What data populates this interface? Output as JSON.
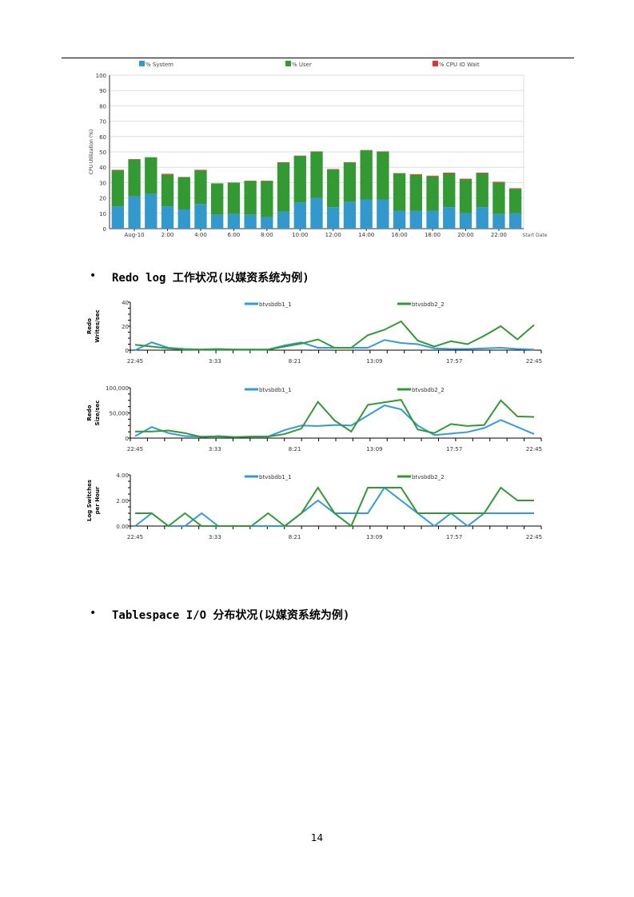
{
  "cpu_chart": {
    "chart_data": {
      "type": "bar",
      "stacked": true,
      "ylabel": "CPU Utilization (%)",
      "xlabel": "Start Date",
      "ylim": [
        0,
        100
      ],
      "yticks": [
        0,
        10,
        20,
        30,
        40,
        50,
        60,
        70,
        80,
        90,
        100
      ],
      "grid": true,
      "legend_position": "top",
      "tick_labels": [
        {
          "index": 1,
          "label": "Aug-10"
        },
        {
          "index": 3,
          "label": "2:00"
        },
        {
          "index": 5,
          "label": "4:00"
        },
        {
          "index": 7,
          "label": "6:00"
        },
        {
          "index": 9,
          "label": "8:00"
        },
        {
          "index": 11,
          "label": "10:00"
        },
        {
          "index": 13,
          "label": "12:00"
        },
        {
          "index": 15,
          "label": "14:00"
        },
        {
          "index": 17,
          "label": "16:00"
        },
        {
          "index": 19,
          "label": "18:00"
        },
        {
          "index": 21,
          "label": "20:00"
        },
        {
          "index": 23,
          "label": "22:00"
        }
      ],
      "series": [
        {
          "name": "% System",
          "color": "#3399cc",
          "values": [
            14.5,
            21,
            22.5,
            14.5,
            12.5,
            16,
            9,
            9.5,
            9,
            7.5,
            11,
            17,
            20,
            14,
            17.5,
            19,
            19,
            11.5,
            11.5,
            11.5,
            14,
            10,
            14,
            9.5,
            10
          ]
        },
        {
          "name": "% User",
          "color": "#339933",
          "values": [
            23.5,
            24,
            24,
            20.5,
            21,
            22,
            20.5,
            20.5,
            22,
            23.5,
            32,
            30.5,
            30,
            24.5,
            25.5,
            32,
            31,
            24.5,
            23.5,
            22.5,
            22,
            22,
            22,
            20.5,
            16
          ]
        },
        {
          "name": "% CPU IO Wait",
          "color": "#dd3333",
          "values": [
            0.3,
            0.3,
            0,
            0.7,
            0.2,
            0.3,
            0,
            0,
            0.2,
            0.2,
            0.3,
            0.1,
            0.3,
            0.3,
            0.3,
            0.2,
            0.3,
            0.2,
            0.5,
            0.5,
            0.5,
            0.5,
            0.5,
            0.5,
            0.3
          ]
        }
      ]
    }
  },
  "section1": {
    "bullet": "•",
    "heading": "Redo log 工作状况(以媒资系统为例)"
  },
  "redo_charts": {
    "chart_data": [
      {
        "type": "line",
        "ylabel": "Redo Writes/sec",
        "ylim": [
          0,
          40
        ],
        "ytick_labels": [
          "0",
          "20",
          "40"
        ],
        "yticks": [
          0,
          20,
          40
        ],
        "xtick_labels": [
          "22:45",
          "3:33",
          "8:21",
          "13:09",
          "17:57",
          "22:45"
        ],
        "series": [
          {
            "name": "btvsbdb1_1",
            "color": "#3399dd",
            "values": [
              0,
              6.5,
              2,
              1,
              0.5,
              0.5,
              0.5,
              0.5,
              0.5,
              4,
              6.5,
              2,
              2,
              2,
              2,
              8.5,
              6,
              5,
              1.5,
              1,
              1,
              1.5,
              2,
              1,
              0.5
            ]
          },
          {
            "name": "btvsbdb2_2",
            "color": "#339933",
            "values": [
              4.5,
              3,
              1.5,
              0.5,
              0.5,
              1,
              0.5,
              0.5,
              0.5,
              3,
              5.5,
              9,
              2,
              2,
              12.5,
              17,
              24,
              8,
              3,
              7.5,
              5,
              12,
              20,
              9,
              21
            ]
          }
        ]
      },
      {
        "type": "line",
        "ylabel": "Redo Size/sec",
        "ylim": [
          0,
          100000
        ],
        "ytick_labels": [
          "0",
          "50,000",
          "100,000"
        ],
        "yticks": [
          0,
          50000,
          100000
        ],
        "xtick_labels": [
          "22:45",
          "3:33",
          "8:21",
          "13:09",
          "17:57",
          "22:45"
        ],
        "series": [
          {
            "name": "btvsbdb1_1",
            "color": "#3399dd",
            "values": [
              4000,
              22000,
              10000,
              4000,
              3000,
              3000,
              2000,
              3000,
              3000,
              16000,
              25000,
              24000,
              26000,
              25000,
              45000,
              65000,
              57000,
              25000,
              6000,
              9000,
              12000,
              20000,
              36000,
              22000,
              8000
            ]
          },
          {
            "name": "btvsbdb2_2",
            "color": "#339933",
            "values": [
              13000,
              13000,
              15000,
              10000,
              2000,
              4000,
              2000,
              3000,
              3000,
              8000,
              19000,
              72000,
              35000,
              13000,
              66000,
              71000,
              76000,
              17000,
              10000,
              28000,
              24000,
              26000,
              75000,
              43000,
              42000
            ]
          }
        ]
      },
      {
        "type": "line",
        "ylabel": "Log Switches per Hour",
        "ylim": [
          0,
          4
        ],
        "ytick_labels": [
          "0.00",
          "2.00",
          "4.00"
        ],
        "yticks": [
          0,
          2,
          4
        ],
        "xtick_labels": [
          "22:45",
          "3:33",
          "8:21",
          "13:09",
          "17:57",
          "22:45"
        ],
        "series": [
          {
            "name": "btvsbdb1_1",
            "color": "#3399dd",
            "values": [
              0,
              1,
              0,
              0,
              1,
              0,
              0,
              0,
              0,
              0,
              1,
              2,
              1,
              1,
              1,
              3,
              2,
              1,
              0,
              1,
              0,
              1,
              1,
              1,
              1
            ]
          },
          {
            "name": "btvsbdb2_2",
            "color": "#339933",
            "values": [
              1,
              1,
              0,
              1,
              0,
              0,
              0,
              0,
              1,
              0,
              1,
              3,
              1,
              0,
              3,
              3,
              3,
              1,
              1,
              1,
              1,
              1,
              3,
              2,
              2
            ]
          }
        ]
      }
    ]
  },
  "section2": {
    "bullet": "•",
    "heading": "Tablespace I/O 分布状况(以媒资系统为例)"
  },
  "page_number": "14"
}
